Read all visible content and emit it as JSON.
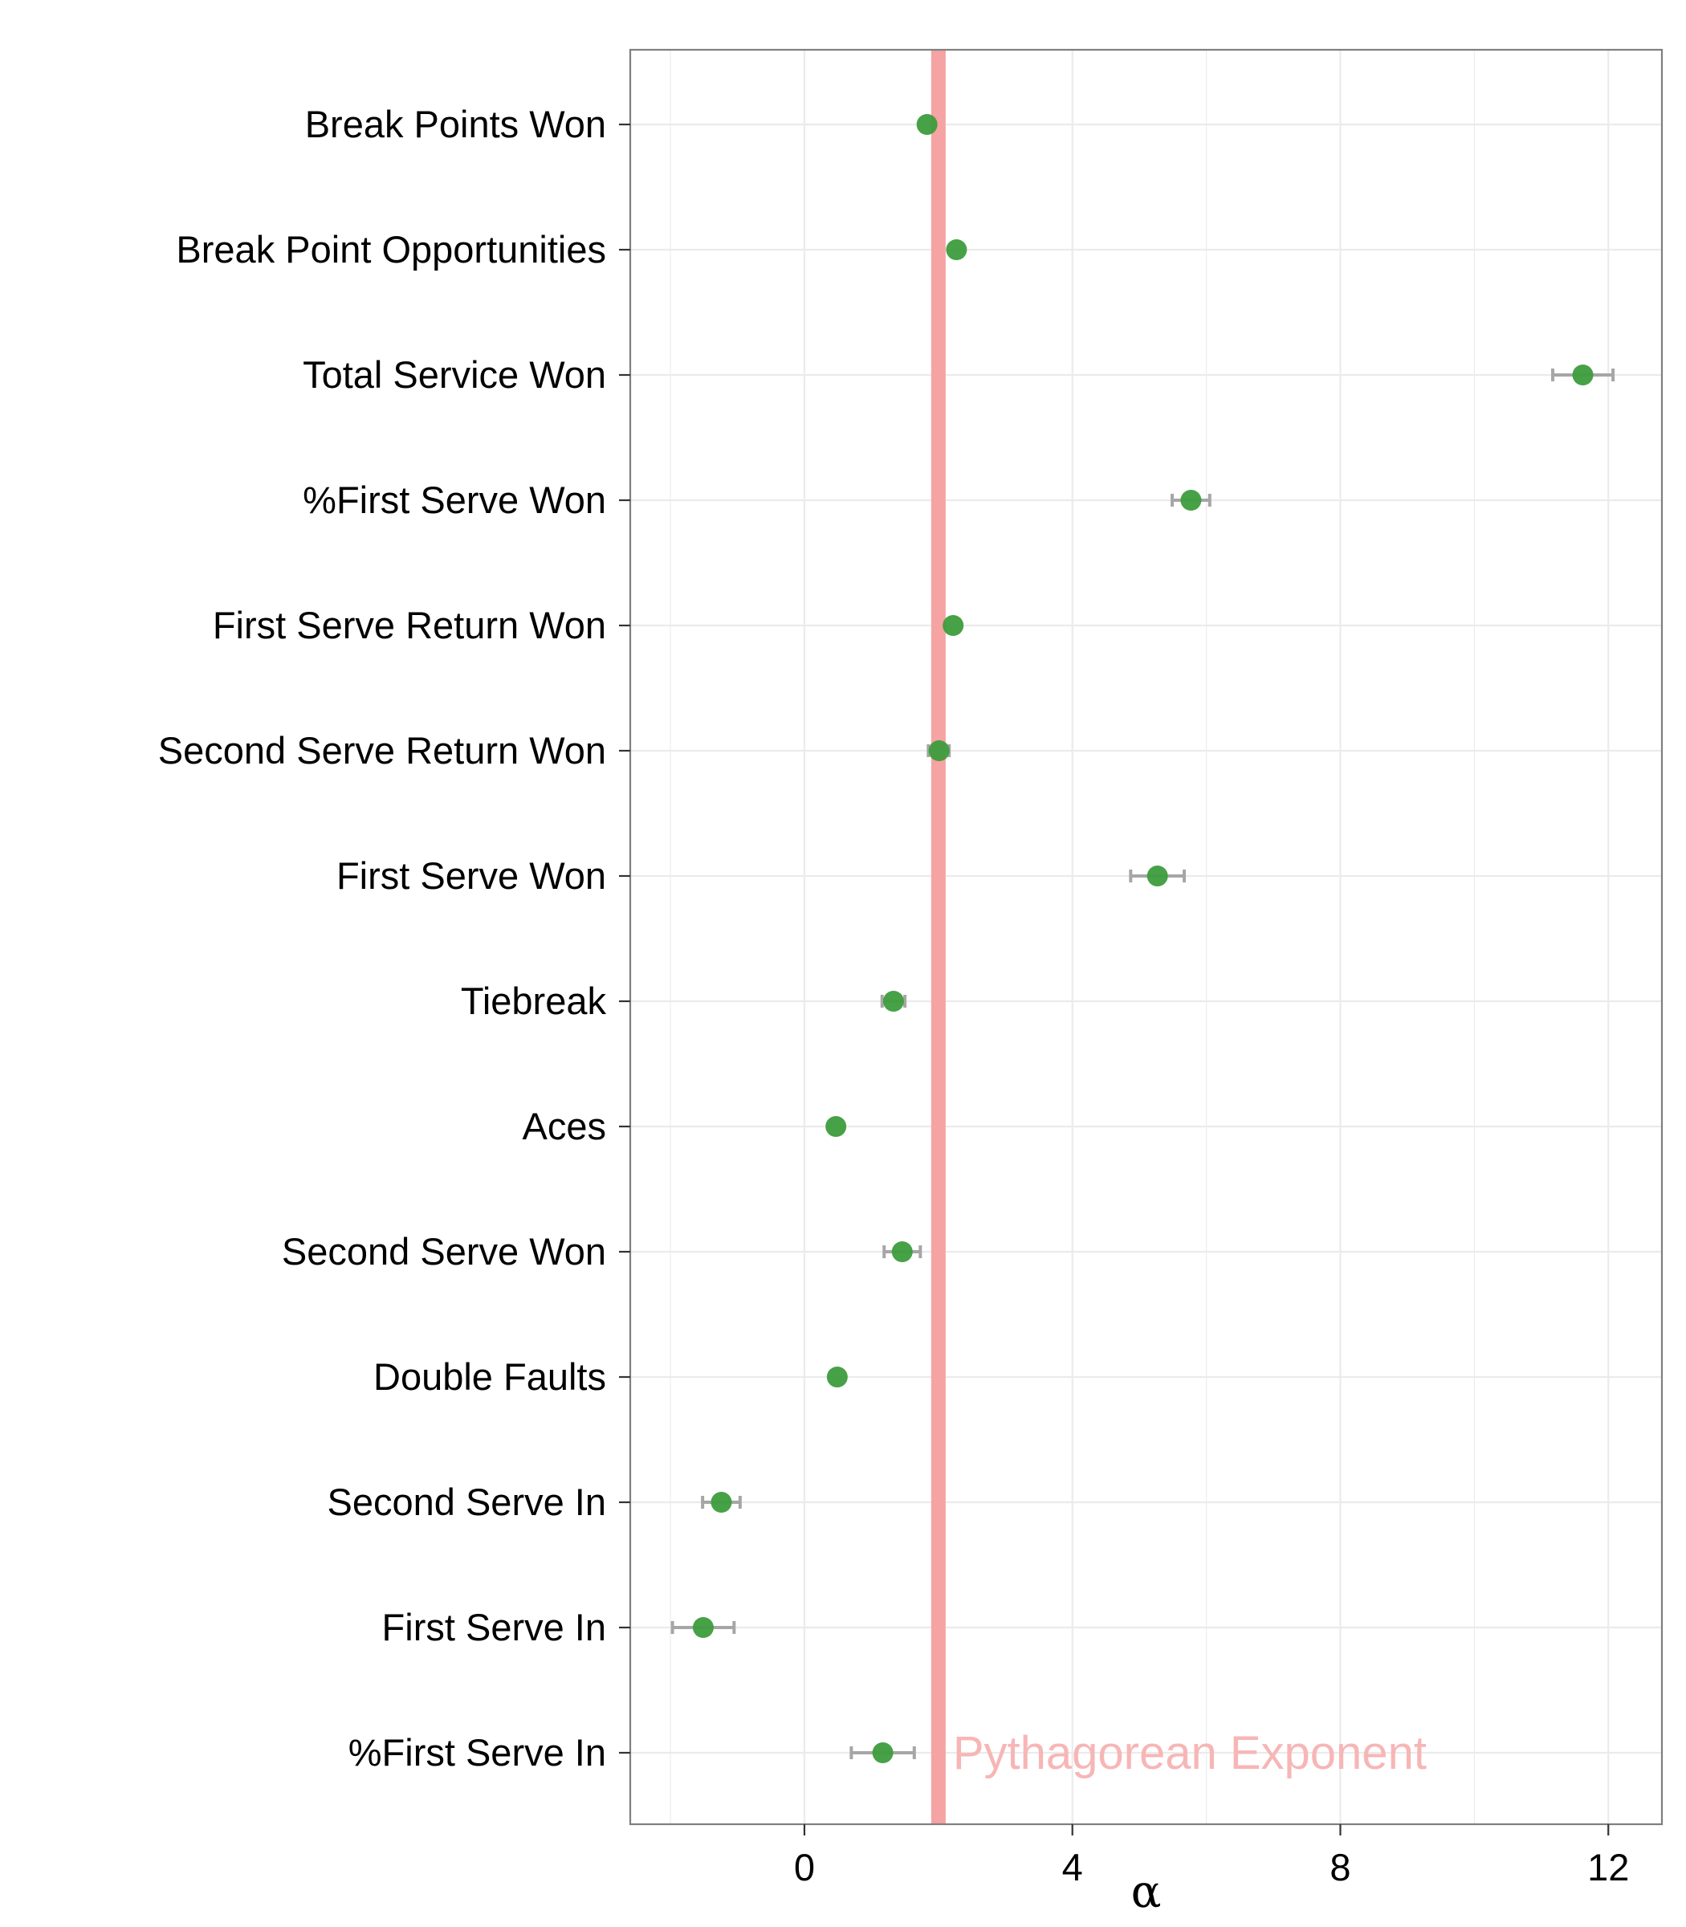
{
  "chart_data": {
    "type": "scatter",
    "xlabel": "α",
    "xlim": [
      -2.6,
      12.8
    ],
    "x_ticks": [
      0,
      4,
      8,
      12
    ],
    "grid": true,
    "categories": [
      "Break Points Won",
      "Break Point Opportunities",
      "Total Service Won",
      "%First Serve Won",
      "First Serve Return Won",
      "Second Serve Return Won",
      "First Serve Won",
      "Tiebreak",
      "Aces",
      "Second Serve Won",
      "Double Faults",
      "Second Serve In",
      "First Serve In",
      "%First Serve In"
    ],
    "values": [
      1.83,
      2.27,
      11.62,
      5.77,
      2.22,
      2.01,
      5.27,
      1.33,
      0.47,
      1.46,
      0.49,
      -1.24,
      -1.51,
      1.17
    ],
    "error_low": [
      1.83,
      2.27,
      11.17,
      5.49,
      2.22,
      1.85,
      4.87,
      1.16,
      0.47,
      1.19,
      0.49,
      -1.52,
      -1.97,
      0.7
    ],
    "error_high": [
      1.83,
      2.27,
      12.07,
      6.05,
      2.22,
      2.16,
      5.67,
      1.5,
      0.47,
      1.73,
      0.49,
      -0.96,
      -1.05,
      1.64
    ],
    "reference_line": {
      "x": 2.0,
      "label": "Pythagorean Exponent"
    },
    "colors": {
      "point": "#3d9c3d",
      "errorbar": "#a6a6a6",
      "reference": "#f5a3a3",
      "reference_label": "#f7b6b6",
      "grid": "#ebebeb",
      "border": "#7f7f7f"
    }
  }
}
